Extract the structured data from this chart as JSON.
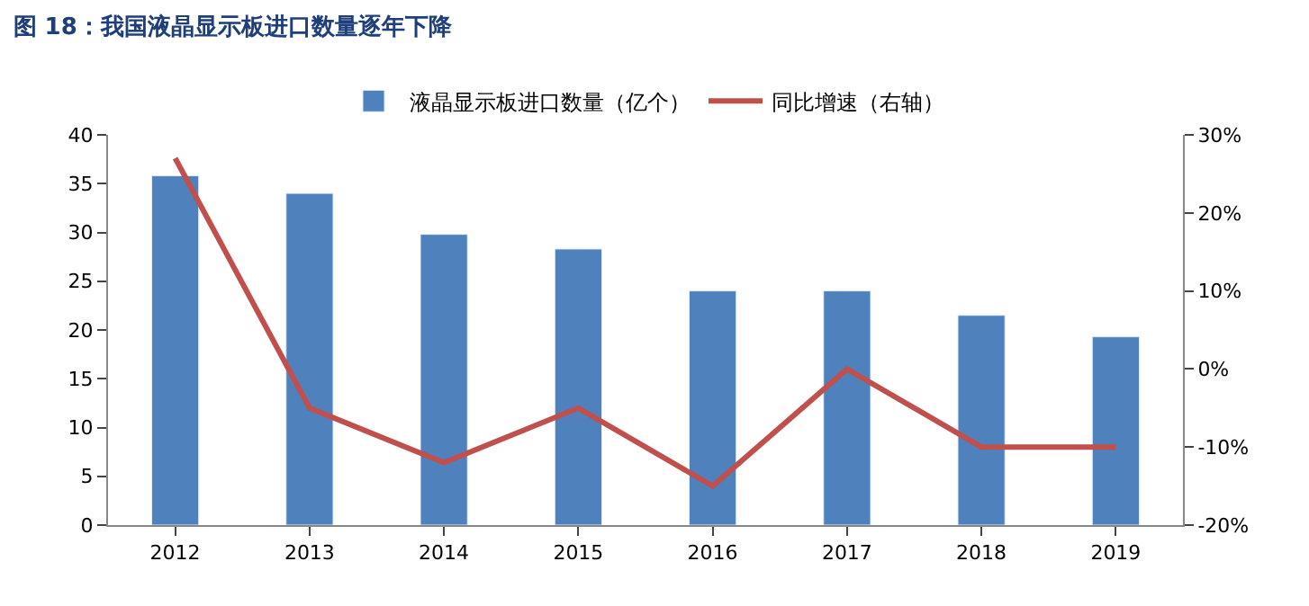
{
  "chart_data": {
    "type": "bar",
    "title": "图 18：我国液晶显示板进口数量逐年下降",
    "categories": [
      "2012",
      "2013",
      "2014",
      "2015",
      "2016",
      "2017",
      "2018",
      "2019"
    ],
    "series": [
      {
        "name": "液晶显示板进口数量（亿个）",
        "color": "#4f81bd",
        "values": [
          35.8,
          34,
          29.8,
          28.3,
          24,
          24,
          21.5,
          19.3
        ]
      },
      {
        "name": "同比增速（右轴）",
        "color": "#c0504d",
        "type": "line",
        "axis": "y2",
        "values": [
          27,
          -5,
          -12,
          -5,
          -15,
          0,
          -10,
          -10
        ]
      }
    ],
    "ylim": [
      0,
      40
    ],
    "yticks": [
      0,
      5,
      10,
      15,
      20,
      25,
      30,
      35,
      40
    ],
    "y2lim": [
      -20,
      30
    ],
    "y2ticks": [
      {
        "value": -20,
        "label": "-20%"
      },
      {
        "value": -10,
        "label": "-10%"
      },
      {
        "value": 0,
        "label": "0%"
      },
      {
        "value": 10,
        "label": "10%"
      },
      {
        "value": 20,
        "label": "20%"
      },
      {
        "value": 30,
        "label": "30%"
      }
    ],
    "legend": "top",
    "marker": "none",
    "line_style": "solid"
  }
}
